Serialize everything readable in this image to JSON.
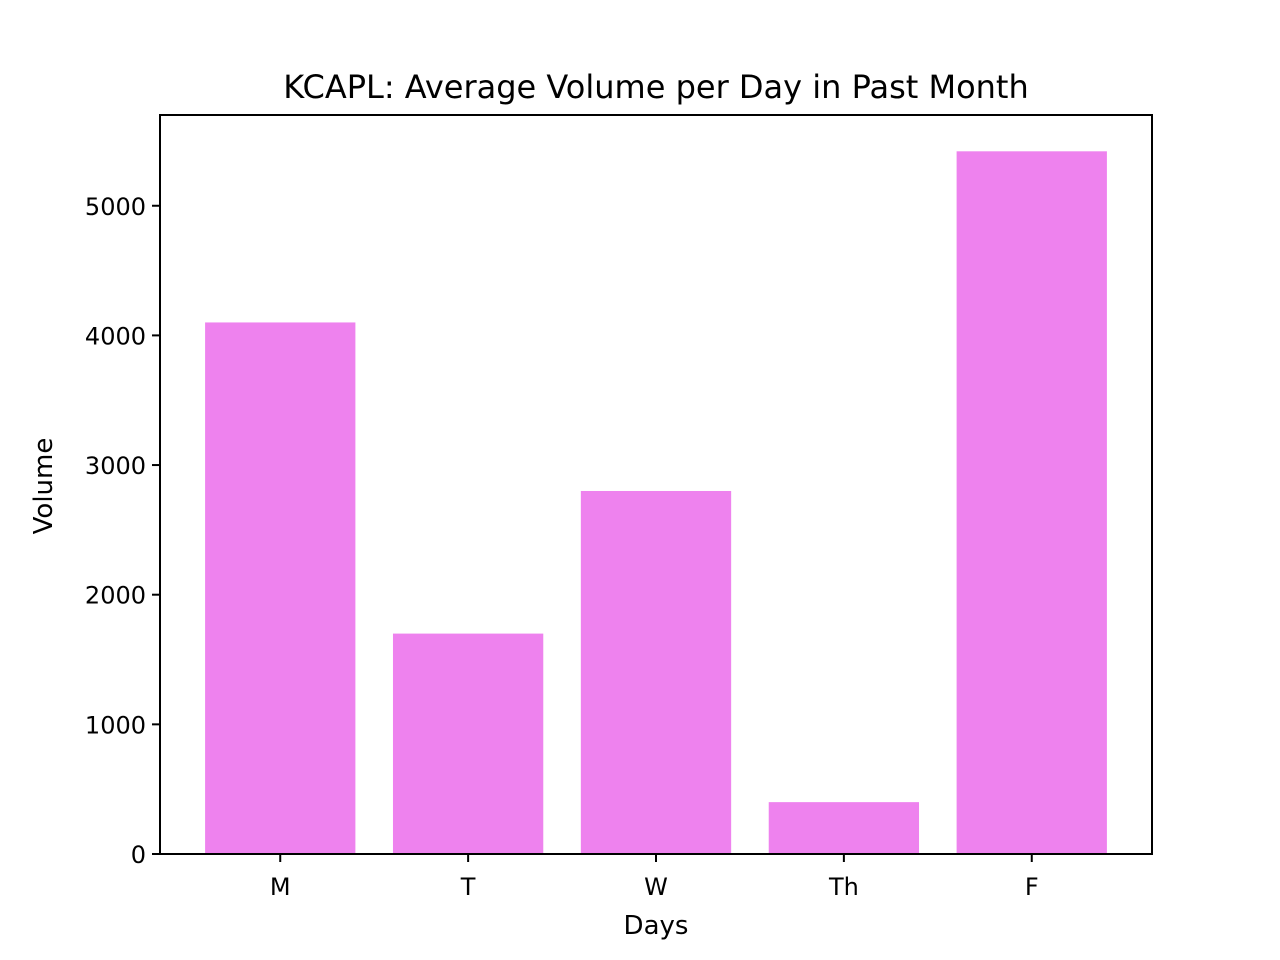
{
  "colors": {
    "bar": "#ee82ee",
    "axis": "#000000",
    "background": "#ffffff"
  },
  "chart_data": {
    "type": "bar",
    "title": "KCAPL: Average Volume per Day in Past Month",
    "xlabel": "Days",
    "ylabel": "Volume",
    "categories": [
      "M",
      "T",
      "W",
      "Th",
      "F"
    ],
    "values": [
      4100,
      1700,
      2800,
      400,
      5420
    ],
    "ylim": [
      0,
      5700
    ],
    "yticks": [
      0,
      1000,
      2000,
      3000,
      4000,
      5000
    ],
    "grid": false,
    "legend": "none"
  }
}
